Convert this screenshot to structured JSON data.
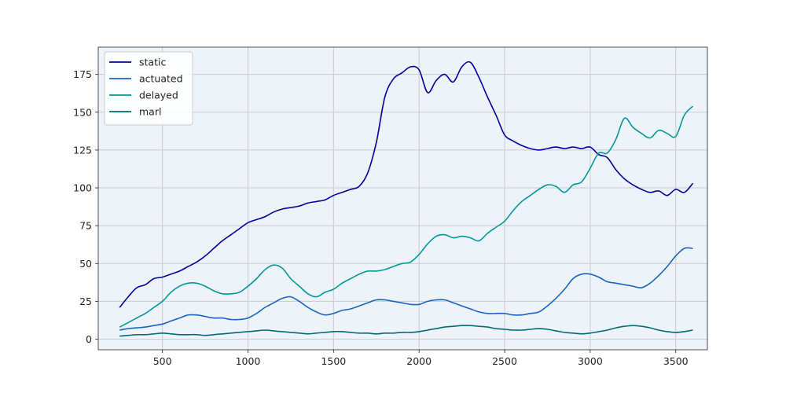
{
  "chart_data": {
    "type": "line",
    "title": "",
    "xlabel": "",
    "ylabel": "",
    "xlim": [
      125,
      3685
    ],
    "ylim": [
      -7,
      193
    ],
    "xticks": [
      500,
      1000,
      1500,
      2000,
      2500,
      3000,
      3500
    ],
    "yticks": [
      0,
      25,
      50,
      75,
      100,
      125,
      150,
      175
    ],
    "grid": true,
    "legend_position": "top-left",
    "background": "#eef3fa",
    "series": [
      {
        "name": "static",
        "color": "#00009b",
        "x": [
          250,
          300,
          350,
          400,
          450,
          500,
          550,
          600,
          650,
          700,
          750,
          800,
          850,
          900,
          950,
          1000,
          1050,
          1100,
          1150,
          1200,
          1250,
          1300,
          1350,
          1400,
          1450,
          1500,
          1550,
          1600,
          1650,
          1700,
          1750,
          1800,
          1850,
          1900,
          1950,
          2000,
          2050,
          2100,
          2150,
          2200,
          2250,
          2300,
          2350,
          2400,
          2450,
          2500,
          2550,
          2600,
          2650,
          2700,
          2750,
          2800,
          2850,
          2900,
          2950,
          3000,
          3050,
          3100,
          3150,
          3200,
          3250,
          3300,
          3350,
          3400,
          3450,
          3500,
          3550,
          3600
        ],
        "values": [
          21,
          28,
          34,
          36,
          40,
          41,
          43,
          45,
          48,
          51,
          55,
          60,
          65,
          69,
          73,
          77,
          79,
          81,
          84,
          86,
          87,
          88,
          90,
          91,
          92,
          95,
          97,
          99,
          101,
          110,
          130,
          160,
          172,
          176,
          180,
          178,
          163,
          171,
          175,
          170,
          180,
          183,
          173,
          160,
          148,
          135,
          131,
          128,
          126,
          125,
          126,
          127,
          126,
          127,
          126,
          127,
          122,
          120,
          112,
          106,
          102,
          99,
          97,
          98,
          95,
          99,
          97,
          103
        ]
      },
      {
        "name": "actuated",
        "color": "#1565c0",
        "x": [
          250,
          300,
          350,
          400,
          450,
          500,
          550,
          600,
          650,
          700,
          750,
          800,
          850,
          900,
          950,
          1000,
          1050,
          1100,
          1150,
          1200,
          1250,
          1300,
          1350,
          1400,
          1450,
          1500,
          1550,
          1600,
          1650,
          1700,
          1750,
          1800,
          1850,
          1900,
          1950,
          2000,
          2050,
          2100,
          2150,
          2200,
          2250,
          2300,
          2350,
          2400,
          2450,
          2500,
          2550,
          2600,
          2650,
          2700,
          2750,
          2800,
          2850,
          2900,
          2950,
          3000,
          3050,
          3100,
          3150,
          3200,
          3250,
          3300,
          3350,
          3400,
          3450,
          3500,
          3550,
          3600
        ],
        "values": [
          6,
          7,
          7.5,
          8,
          9,
          10,
          12,
          14,
          16,
          16,
          15,
          14,
          14,
          13,
          13,
          14,
          17,
          21,
          24,
          27,
          28,
          25,
          21,
          18,
          16,
          17,
          19,
          20,
          22,
          24,
          26,
          26,
          25,
          24,
          23,
          23,
          25,
          26,
          26,
          24,
          22,
          20,
          18,
          17,
          17,
          17,
          16,
          16,
          17,
          18,
          22,
          27,
          33,
          40,
          43,
          43,
          41,
          38,
          37,
          36,
          35,
          34,
          37,
          42,
          48,
          55,
          60,
          60
        ]
      },
      {
        "name": "delayed",
        "color": "#00979a",
        "x": [
          250,
          300,
          350,
          400,
          450,
          500,
          550,
          600,
          650,
          700,
          750,
          800,
          850,
          900,
          950,
          1000,
          1050,
          1100,
          1150,
          1200,
          1250,
          1300,
          1350,
          1400,
          1450,
          1500,
          1550,
          1600,
          1650,
          1700,
          1750,
          1800,
          1850,
          1900,
          1950,
          2000,
          2050,
          2100,
          2150,
          2200,
          2250,
          2300,
          2350,
          2400,
          2450,
          2500,
          2550,
          2600,
          2650,
          2700,
          2750,
          2800,
          2850,
          2900,
          2950,
          3000,
          3050,
          3100,
          3150,
          3200,
          3250,
          3300,
          3350,
          3400,
          3450,
          3500,
          3550,
          3600
        ],
        "values": [
          8,
          11,
          14,
          17,
          21,
          25,
          31,
          35,
          37,
          37,
          35,
          32,
          30,
          30,
          31,
          35,
          40,
          46,
          49,
          47,
          40,
          35,
          30,
          28,
          31,
          33,
          37,
          40,
          43,
          45,
          45,
          46,
          48,
          50,
          51,
          56,
          63,
          68,
          69,
          67,
          68,
          67,
          65,
          70,
          74,
          78,
          85,
          91,
          95,
          99,
          102,
          101,
          97,
          102,
          104,
          113,
          123,
          123,
          132,
          146,
          140,
          136,
          133,
          138,
          136,
          134,
          148,
          154
        ]
      },
      {
        "name": "marl",
        "color": "#006b73",
        "x": [
          250,
          300,
          350,
          400,
          450,
          500,
          550,
          600,
          650,
          700,
          750,
          800,
          850,
          900,
          950,
          1000,
          1050,
          1100,
          1150,
          1200,
          1250,
          1300,
          1350,
          1400,
          1450,
          1500,
          1550,
          1600,
          1650,
          1700,
          1750,
          1800,
          1850,
          1900,
          1950,
          2000,
          2050,
          2100,
          2150,
          2200,
          2250,
          2300,
          2350,
          2400,
          2450,
          2500,
          2550,
          2600,
          2650,
          2700,
          2750,
          2800,
          2850,
          2900,
          2950,
          3000,
          3050,
          3100,
          3150,
          3200,
          3250,
          3300,
          3350,
          3400,
          3450,
          3500,
          3550,
          3600
        ],
        "values": [
          2,
          2.5,
          3,
          3,
          3.5,
          4,
          3.5,
          3,
          3,
          3,
          2.5,
          3,
          3.5,
          4,
          4.5,
          5,
          5.5,
          6,
          5.5,
          5,
          4.5,
          4,
          3.5,
          4,
          4.5,
          5,
          5,
          4.5,
          4,
          4,
          3.5,
          4,
          4,
          4.5,
          4.5,
          5,
          6,
          7,
          8,
          8.5,
          9,
          9,
          8.5,
          8,
          7,
          6.5,
          6,
          6,
          6.5,
          7,
          6.5,
          5.5,
          4.5,
          4,
          3.5,
          4,
          5,
          6,
          7.5,
          8.5,
          9,
          8.5,
          7.5,
          6,
          5,
          4.5,
          5,
          6
        ]
      }
    ]
  }
}
